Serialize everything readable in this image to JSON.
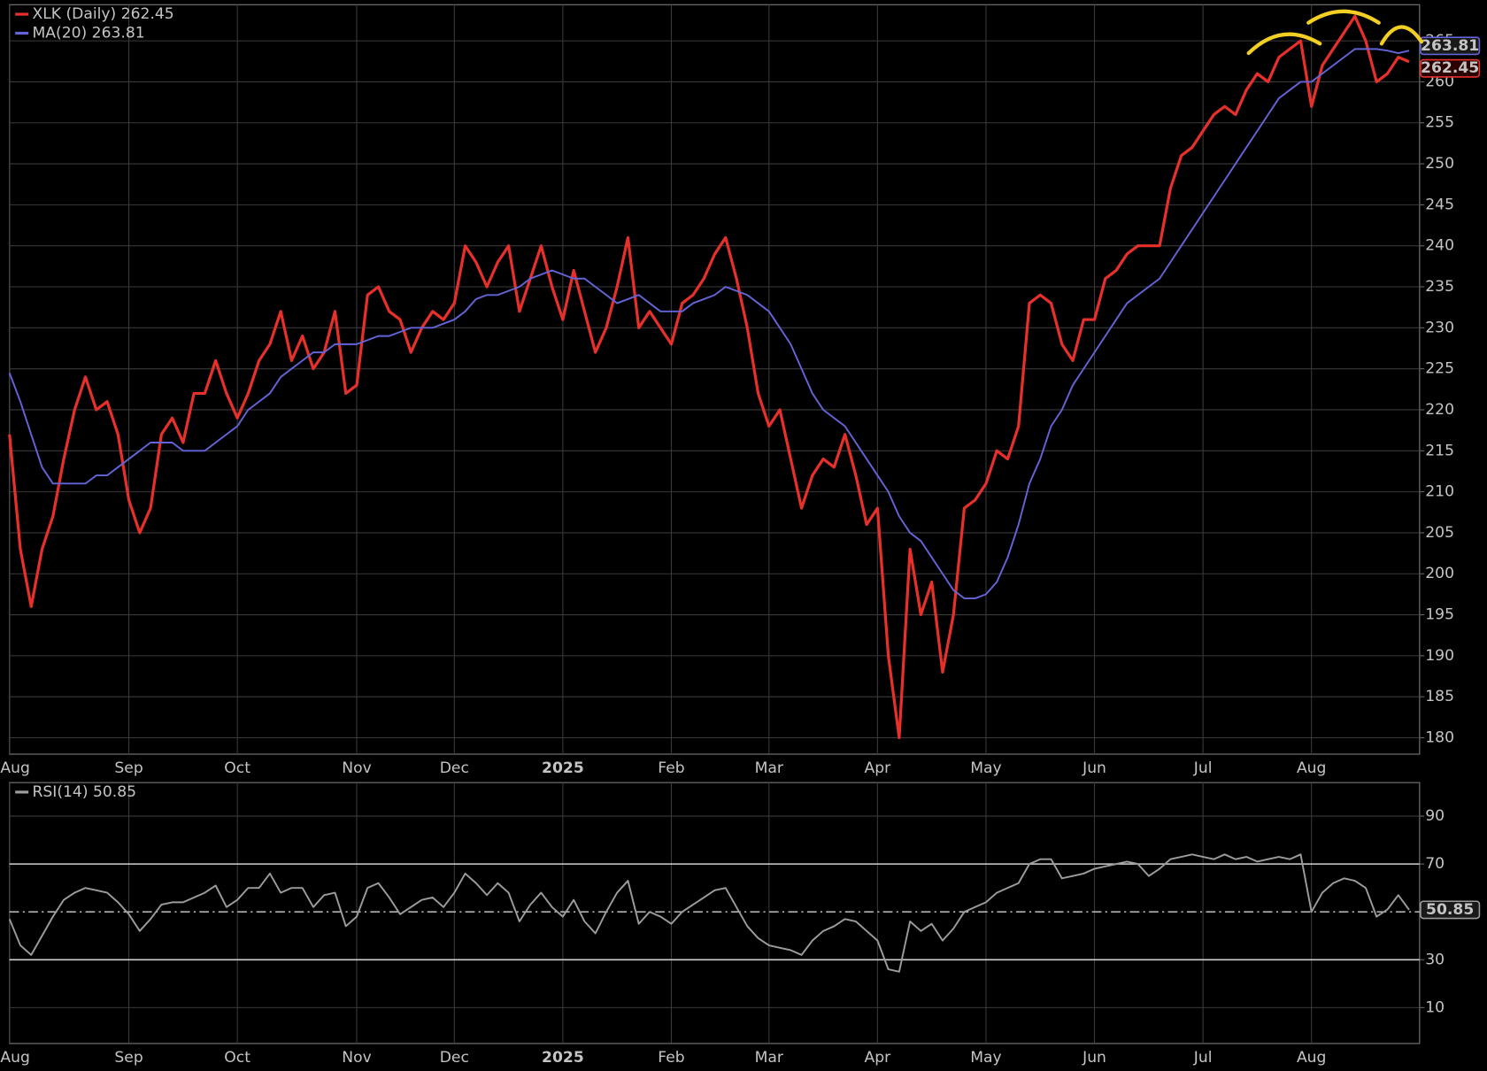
{
  "chart_data": [
    {
      "type": "line",
      "categories": [
        "Aug",
        null,
        null,
        null,
        null,
        null,
        null,
        null,
        null,
        null,
        null,
        "Sep",
        null,
        null,
        null,
        null,
        null,
        null,
        null,
        null,
        null,
        "Oct",
        null,
        null,
        null,
        null,
        null,
        null,
        null,
        null,
        null,
        null,
        "Nov",
        null,
        null,
        null,
        null,
        null,
        null,
        null,
        null,
        "Dec",
        null,
        null,
        null,
        null,
        null,
        null,
        null,
        null,
        null,
        "2025",
        null,
        null,
        null,
        null,
        null,
        null,
        null,
        null,
        null,
        "Feb",
        null,
        null,
        null,
        null,
        null,
        null,
        null,
        null,
        "Mar",
        null,
        null,
        null,
        null,
        null,
        null,
        null,
        null,
        null,
        "Apr",
        null,
        null,
        null,
        null,
        null,
        null,
        null,
        null,
        null,
        "May",
        null,
        null,
        null,
        null,
        null,
        null,
        null,
        null,
        null,
        "Jun",
        null,
        null,
        null,
        null,
        null,
        null,
        null,
        null,
        null,
        "Jul",
        null,
        null,
        null,
        null,
        null,
        null,
        null,
        null,
        null,
        "Aug",
        null,
        null,
        null,
        null,
        null,
        null,
        null,
        null,
        null
      ],
      "ylim": [
        178,
        269.4
      ],
      "yticks": [
        180,
        185,
        190,
        195,
        200,
        205,
        210,
        215,
        220,
        225,
        230,
        235,
        240,
        245,
        250,
        255,
        260,
        265
      ],
      "grid": true,
      "series": [
        {
          "name": "XLK (Daily)",
          "color": "#e8302a",
          "values": [
            217,
            203,
            196,
            203,
            207,
            214,
            220,
            224,
            220,
            221,
            217,
            209,
            205,
            208,
            217,
            219,
            216,
            222,
            222,
            226,
            222,
            219,
            222,
            226,
            228,
            232,
            226,
            229,
            225,
            227,
            232,
            222,
            223,
            234,
            235,
            232,
            231,
            227,
            230,
            232,
            231,
            233,
            240,
            238,
            235,
            238,
            240,
            232,
            236,
            240,
            235,
            231,
            237,
            232,
            227,
            230,
            235,
            241,
            230,
            232,
            230,
            228,
            233,
            234,
            236,
            239,
            241,
            236,
            230,
            222,
            218,
            220,
            214,
            208,
            212,
            214,
            213,
            217,
            212,
            206,
            208,
            190,
            180,
            203,
            195,
            199,
            188,
            195,
            208,
            209,
            211,
            215,
            214,
            218,
            233,
            234,
            233,
            228,
            226,
            231,
            231,
            236,
            237,
            239,
            240,
            240,
            240,
            247,
            251,
            252,
            254,
            256,
            257,
            256,
            259,
            261,
            260,
            263,
            264,
            265,
            257,
            262,
            264,
            266,
            268,
            265,
            260,
            261,
            263,
            262.45
          ]
        },
        {
          "name": "MA(20)",
          "color": "#6464d8",
          "values": [
            224.5,
            221,
            217,
            213,
            211,
            211,
            211,
            211,
            212,
            212,
            213,
            214,
            215,
            216,
            216,
            216,
            215,
            215,
            215,
            216,
            217,
            218,
            220,
            221,
            222,
            224,
            225,
            226,
            227,
            227,
            228,
            228,
            228,
            228.5,
            229,
            229,
            229.5,
            230,
            230,
            230,
            230.5,
            231,
            232,
            233.5,
            234,
            234,
            234.5,
            235,
            236,
            236.5,
            237,
            236.5,
            236,
            236,
            235,
            234,
            233,
            233.5,
            234,
            233,
            232,
            232,
            232,
            233,
            233.5,
            234,
            235,
            234.5,
            234,
            233,
            232,
            230,
            228,
            225,
            222,
            220,
            219,
            218,
            216,
            214,
            212,
            210,
            207,
            205,
            204,
            202,
            200,
            198,
            197,
            197,
            197.5,
            199,
            202,
            206,
            211,
            214,
            218,
            220,
            223,
            225,
            227,
            229,
            231,
            233,
            234,
            235,
            236,
            238,
            240,
            242,
            244,
            246,
            248,
            250,
            252,
            254,
            256,
            258,
            259,
            260,
            260,
            261,
            262,
            263,
            264,
            264,
            264,
            263.8,
            263.5,
            263.81
          ]
        }
      ]
    },
    {
      "type": "line",
      "categories": [
        "Aug",
        null,
        null,
        null,
        null,
        null,
        null,
        null,
        null,
        null,
        null,
        "Sep",
        null,
        null,
        null,
        null,
        null,
        null,
        null,
        null,
        null,
        "Oct",
        null,
        null,
        null,
        null,
        null,
        null,
        null,
        null,
        null,
        null,
        "Nov",
        null,
        null,
        null,
        null,
        null,
        null,
        null,
        null,
        "Dec",
        null,
        null,
        null,
        null,
        null,
        null,
        null,
        null,
        null,
        "2025",
        null,
        null,
        null,
        null,
        null,
        null,
        null,
        null,
        null,
        "Feb",
        null,
        null,
        null,
        null,
        null,
        null,
        null,
        null,
        "Mar",
        null,
        null,
        null,
        null,
        null,
        null,
        null,
        null,
        null,
        "Apr",
        null,
        null,
        null,
        null,
        null,
        null,
        null,
        null,
        null,
        "May",
        null,
        null,
        null,
        null,
        null,
        null,
        null,
        null,
        null,
        "Jun",
        null,
        null,
        null,
        null,
        null,
        null,
        null,
        null,
        null,
        "Jul",
        null,
        null,
        null,
        null,
        null,
        null,
        null,
        null,
        null,
        "Aug",
        null,
        null,
        null,
        null,
        null,
        null,
        null,
        null,
        null
      ],
      "ylim": [
        -5,
        104
      ],
      "yticks": [
        10,
        30,
        70,
        90
      ],
      "grid": true,
      "bands": [
        30,
        70
      ],
      "midline": 50,
      "series": [
        {
          "name": "RSI(14)",
          "color": "#9c9c9c",
          "values": [
            47,
            36,
            32,
            40,
            48,
            55,
            58,
            60,
            59,
            58,
            54,
            49,
            42,
            47,
            53,
            54,
            54,
            56,
            58,
            61,
            52,
            55,
            60,
            60,
            66,
            58,
            60,
            60,
            52,
            57,
            58,
            44,
            48,
            60,
            62,
            56,
            49,
            52,
            55,
            56,
            52,
            58,
            66,
            62,
            57,
            62,
            58,
            46,
            53,
            58,
            52,
            48,
            55,
            46,
            41,
            50,
            58,
            63,
            45,
            50,
            48,
            45,
            50,
            53,
            56,
            59,
            60,
            52,
            44,
            39,
            36,
            35,
            34,
            32,
            38,
            42,
            44,
            47,
            46,
            42,
            38,
            26,
            25,
            46,
            42,
            45,
            38,
            43,
            50,
            52,
            54,
            58,
            60,
            62,
            70,
            72,
            72,
            64,
            65,
            66,
            68,
            69,
            70,
            71,
            70,
            65,
            68,
            72,
            73,
            74,
            73,
            72,
            74,
            72,
            73,
            71,
            72,
            73,
            72,
            74,
            50,
            58,
            62,
            64,
            63,
            60,
            48,
            51,
            57,
            50.85
          ]
        }
      ]
    }
  ]
}
